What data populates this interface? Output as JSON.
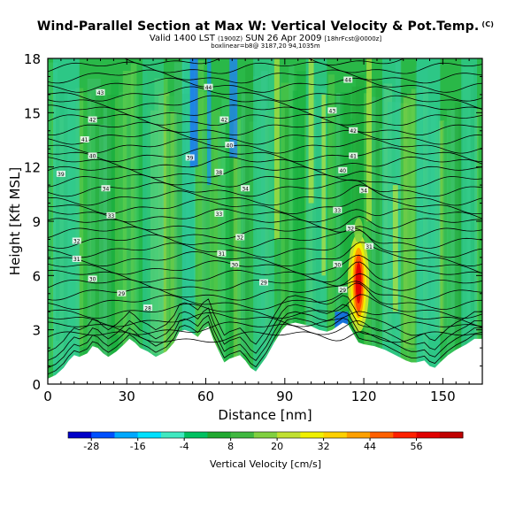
{
  "titles": {
    "main": "Wind-Parallel Section at Max W: Vertical Velocity & Pot.Temp.",
    "copyright": "(C)",
    "valid_prefix": "Valid 1400 LST",
    "valid_utc": "(1900Z)",
    "valid_date": "SUN 26 Apr 2009",
    "valid_fcst": "[18hrFcst@0000z]",
    "run_info": "boxlinear=b8@ 3187,20 94,1035m"
  },
  "chart_data": {
    "type": "heatmap",
    "xlabel": "Distance [nm]",
    "ylabel": "Height [Kft MSL]",
    "xlim": [
      0,
      165
    ],
    "ylim": [
      0,
      18
    ],
    "xticks": [
      0,
      30,
      60,
      90,
      120,
      150
    ],
    "yticks": [
      0,
      3,
      6,
      9,
      12,
      15,
      18
    ],
    "colorbar": {
      "label": "Vertical Velocity [cm/s]",
      "ticks": [
        -28,
        -16,
        -4,
        8,
        20,
        32,
        44,
        56
      ],
      "range": [
        -34,
        68
      ],
      "colors": [
        "#0000c8",
        "#0050ff",
        "#00a8ff",
        "#00e0ff",
        "#40e8c0",
        "#00c060",
        "#20a830",
        "#40b840",
        "#80d040",
        "#c0e030",
        "#f0f000",
        "#ffd000",
        "#ffa000",
        "#ff6000",
        "#ff2000",
        "#e00000",
        "#c00000"
      ]
    },
    "terrain": [
      [
        0,
        0.3
      ],
      [
        3,
        0.5
      ],
      [
        6,
        0.9
      ],
      [
        8,
        1.3
      ],
      [
        10,
        1.6
      ],
      [
        12,
        1.5
      ],
      [
        15,
        1.7
      ],
      [
        17,
        2.1
      ],
      [
        19,
        2.0
      ],
      [
        21,
        1.7
      ],
      [
        23,
        1.5
      ],
      [
        26,
        1.8
      ],
      [
        29,
        2.2
      ],
      [
        31,
        2.5
      ],
      [
        33,
        2.3
      ],
      [
        35,
        2.0
      ],
      [
        38,
        1.8
      ],
      [
        41,
        1.5
      ],
      [
        45,
        1.8
      ],
      [
        48,
        2.3
      ],
      [
        50,
        2.9
      ],
      [
        52,
        3.0
      ],
      [
        54,
        2.9
      ],
      [
        57,
        2.6
      ],
      [
        59,
        3.0
      ],
      [
        61,
        3.2
      ],
      [
        63,
        2.4
      ],
      [
        65,
        1.8
      ],
      [
        67,
        1.2
      ],
      [
        69,
        1.4
      ],
      [
        71,
        1.5
      ],
      [
        73,
        1.6
      ],
      [
        75,
        1.3
      ],
      [
        77,
        0.9
      ],
      [
        79,
        0.7
      ],
      [
        81,
        1.1
      ],
      [
        83,
        1.5
      ],
      [
        86,
        2.3
      ],
      [
        89,
        3.0
      ],
      [
        91,
        3.3
      ],
      [
        94,
        3.4
      ],
      [
        97,
        3.3
      ],
      [
        100,
        3.2
      ],
      [
        103,
        3.0
      ],
      [
        106,
        2.9
      ],
      [
        108,
        3.0
      ],
      [
        110,
        3.2
      ],
      [
        112,
        3.4
      ],
      [
        114,
        3.3
      ],
      [
        116,
        2.8
      ],
      [
        118,
        2.3
      ],
      [
        120,
        2.2
      ],
      [
        124,
        2.1
      ],
      [
        128,
        1.9
      ],
      [
        132,
        1.6
      ],
      [
        136,
        1.3
      ],
      [
        138,
        1.2
      ],
      [
        140,
        1.2
      ],
      [
        143,
        1.3
      ],
      [
        145,
        1.0
      ],
      [
        147,
        0.9
      ],
      [
        149,
        1.2
      ],
      [
        152,
        1.6
      ],
      [
        155,
        1.9
      ],
      [
        159,
        2.2
      ],
      [
        162,
        2.5
      ],
      [
        165,
        2.5
      ]
    ],
    "isentrope_labels": [
      {
        "x": 20,
        "y": 16.1,
        "text": "43"
      },
      {
        "x": 17,
        "y": 14.6,
        "text": "42"
      },
      {
        "x": 14,
        "y": 13.5,
        "text": "41"
      },
      {
        "x": 17,
        "y": 12.6,
        "text": "40"
      },
      {
        "x": 5,
        "y": 11.6,
        "text": "39"
      },
      {
        "x": 22,
        "y": 10.8,
        "text": "34"
      },
      {
        "x": 24,
        "y": 9.3,
        "text": "33"
      },
      {
        "x": 11,
        "y": 7.9,
        "text": "32"
      },
      {
        "x": 11,
        "y": 6.9,
        "text": "31"
      },
      {
        "x": 17,
        "y": 5.8,
        "text": "30"
      },
      {
        "x": 28,
        "y": 5.0,
        "text": "29"
      },
      {
        "x": 38,
        "y": 4.2,
        "text": "28"
      },
      {
        "x": 61,
        "y": 16.4,
        "text": "44"
      },
      {
        "x": 67,
        "y": 14.6,
        "text": "42"
      },
      {
        "x": 69,
        "y": 13.2,
        "text": "40"
      },
      {
        "x": 54,
        "y": 12.5,
        "text": "39"
      },
      {
        "x": 65,
        "y": 11.7,
        "text": "38"
      },
      {
        "x": 75,
        "y": 10.8,
        "text": "34"
      },
      {
        "x": 65,
        "y": 9.4,
        "text": "33"
      },
      {
        "x": 73,
        "y": 8.1,
        "text": "32"
      },
      {
        "x": 66,
        "y": 7.2,
        "text": "31"
      },
      {
        "x": 71,
        "y": 6.6,
        "text": "30"
      },
      {
        "x": 82,
        "y": 5.6,
        "text": "29"
      },
      {
        "x": 114,
        "y": 16.8,
        "text": "44"
      },
      {
        "x": 108,
        "y": 15.1,
        "text": "43"
      },
      {
        "x": 116,
        "y": 14.0,
        "text": "42"
      },
      {
        "x": 116,
        "y": 12.6,
        "text": "41"
      },
      {
        "x": 112,
        "y": 11.8,
        "text": "40"
      },
      {
        "x": 120,
        "y": 10.7,
        "text": "34"
      },
      {
        "x": 110,
        "y": 9.6,
        "text": "33"
      },
      {
        "x": 115,
        "y": 8.6,
        "text": "32"
      },
      {
        "x": 122,
        "y": 7.6,
        "text": "31"
      },
      {
        "x": 110,
        "y": 6.6,
        "text": "30"
      },
      {
        "x": 112,
        "y": 5.2,
        "text": "29"
      }
    ]
  }
}
